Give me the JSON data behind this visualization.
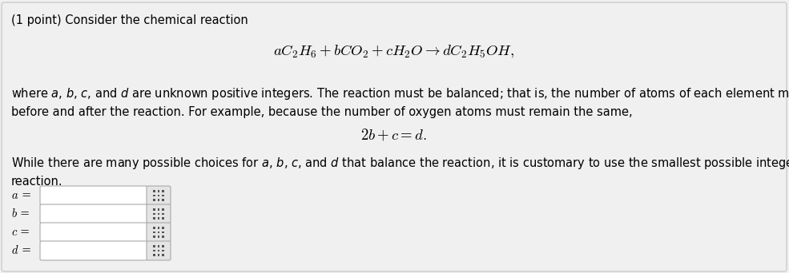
{
  "bg_color": "#f0f0f0",
  "border_color": "#cccccc",
  "text_color": "#000000",
  "line1": "(1 point) Consider the chemical reaction",
  "reaction": "$aC_2H_6 + bCO_2 + cH_2O \\rightarrow dC_2H_5OH,$",
  "p1": "where $a$, $b$, $c$, and $d$ are unknown positive integers. The reaction must be balanced; that is, the number of atoms of each element must be the same",
  "p2": "before and after the reaction. For example, because the number of oxygen atoms must remain the same,",
  "equation2": "$2b + c = d.$",
  "p3": "While there are many possible choices for $a$, $b$, $c$, and $d$ that balance the reaction, it is customary to use the smallest possible integers. Balance this",
  "p4": "reaction.",
  "labels": [
    "a",
    "b",
    "c",
    "d"
  ],
  "font_size_main": 10.5,
  "font_size_eq": 13.5
}
